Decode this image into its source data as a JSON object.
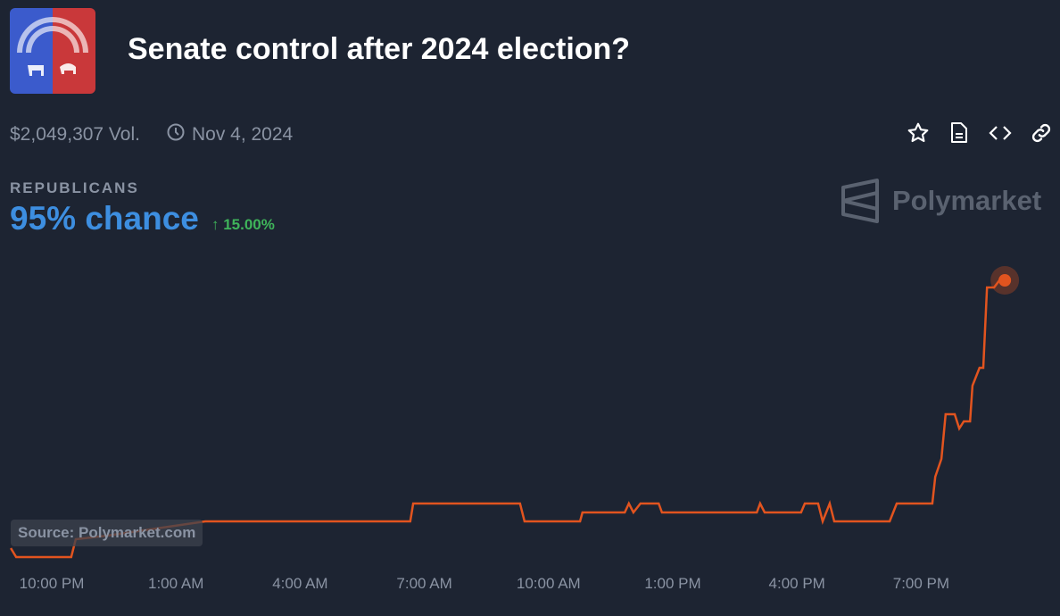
{
  "header": {
    "title": "Senate control after 2024 election?",
    "volume": "$2,049,307 Vol.",
    "date": "Nov 4, 2024"
  },
  "outcome": {
    "label": "REPUBLICANS",
    "chance": "95% chance",
    "delta": "↑ 15.00%"
  },
  "brand": "Polymarket",
  "source": "Source: Polymarket.com",
  "icons": [
    "star-icon",
    "document-icon",
    "embed-code-icon",
    "link-icon",
    "clock-icon"
  ],
  "colors": {
    "line": "#e2541f",
    "chance": "#3d8ee0",
    "delta": "#3fb45a",
    "background": "#1d2432"
  },
  "chart_data": {
    "type": "line",
    "title": "Senate control after 2024 election?",
    "series": [
      {
        "name": "Republicans",
        "unit": "% chance",
        "x_hours_since_10pm": [
          -0.99,
          -0.86,
          0.47,
          0.58,
          1.34,
          3.71,
          8.66,
          8.73,
          11.31,
          11.42,
          12.76,
          12.82,
          13.84,
          13.94,
          14.05,
          14.22,
          14.66,
          14.74,
          17.03,
          17.11,
          17.22,
          18.1,
          18.19,
          18.51,
          18.62,
          18.79,
          18.9,
          20.24,
          20.41,
          21.27,
          21.34,
          21.49,
          21.59,
          21.81,
          21.92,
          22.03,
          22.18,
          22.24,
          22.41,
          22.5,
          22.59,
          22.76,
          22.89,
          23.02
        ],
        "values": [
          80,
          79.5,
          79.5,
          80.5,
          80.7,
          81.5,
          81.5,
          82.5,
          82.5,
          81.5,
          81.5,
          82,
          82,
          82.5,
          82,
          82.5,
          82.5,
          82,
          82,
          82.5,
          82,
          82,
          82.5,
          82.5,
          81.5,
          82.5,
          81.5,
          81.5,
          82.5,
          82.5,
          84,
          85,
          87.5,
          87.5,
          86.7,
          87.1,
          87.1,
          89.1,
          90.1,
          90.1,
          94.6,
          94.6,
          95,
          95
        ]
      }
    ],
    "x_ticks": [
      {
        "h": 0,
        "label": "10:00 PM"
      },
      {
        "h": 3,
        "label": "1:00 AM"
      },
      {
        "h": 6,
        "label": "4:00 AM"
      },
      {
        "h": 9,
        "label": "7:00 AM"
      },
      {
        "h": 12,
        "label": "10:00 AM"
      },
      {
        "h": 15,
        "label": "1:00 PM"
      },
      {
        "h": 18,
        "label": "4:00 PM"
      },
      {
        "h": 21,
        "label": "7:00 PM"
      }
    ],
    "grid": false,
    "legend": "none"
  }
}
